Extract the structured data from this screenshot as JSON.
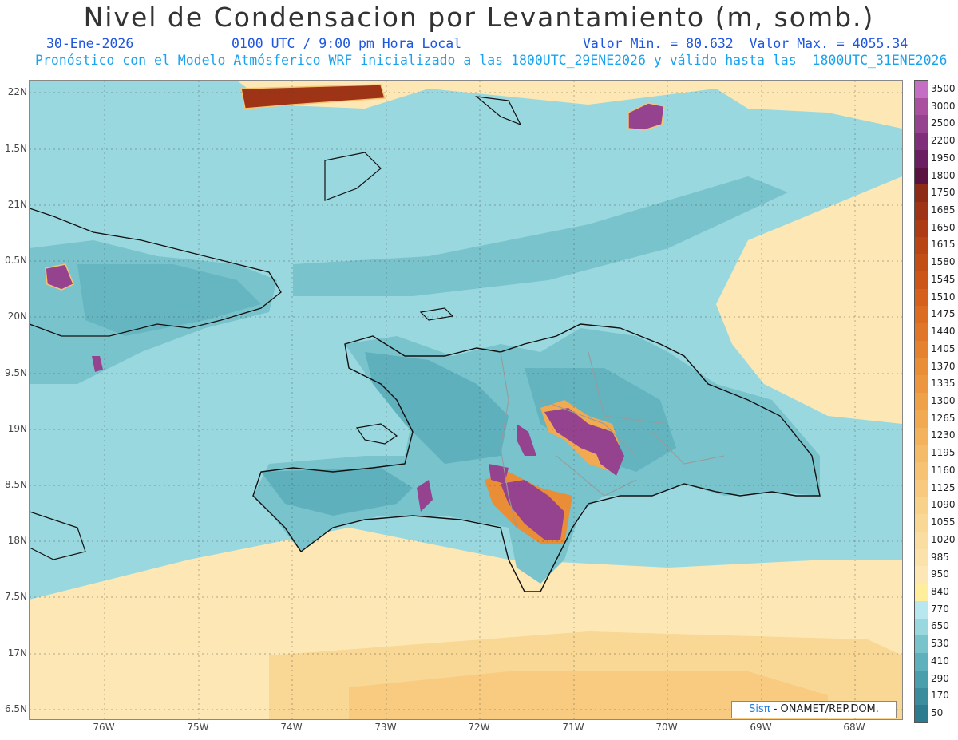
{
  "header": {
    "title": "Nivel de Condensacion por Levantamiento (m, somb.)",
    "date": "30-Ene-2026",
    "time": "0100 UTC / 9:00 pm Hora Local",
    "min_max": "Valor Min. = 80.632  Valor Max. = 4055.34",
    "model_line": "Pronóstico con el Modelo Atmósferico WRF inicializado a las 1800UTC_29ENE2026 y válido hasta las  1800UTC_31ENE2026"
  },
  "axes": {
    "lat_labels": [
      "22N",
      "1.5N",
      "21N",
      "0.5N",
      "20N",
      "9.5N",
      "19N",
      "8.5N",
      "18N",
      "7.5N",
      "17N",
      "6.5N"
    ],
    "lon_labels": [
      "76W",
      "75W",
      "74W",
      "73W",
      "72W",
      "71W",
      "70W",
      "69W",
      "68W"
    ]
  },
  "legend": {
    "labels": [
      "3500",
      "3000",
      "2500",
      "2200",
      "1950",
      "1800",
      "1750",
      "1685",
      "1650",
      "1615",
      "1580",
      "1545",
      "1510",
      "1475",
      "1440",
      "1405",
      "1370",
      "1335",
      "1300",
      "1265",
      "1230",
      "1195",
      "1160",
      "1125",
      "1090",
      "1055",
      "1020",
      "985",
      "950",
      "840",
      "770",
      "650",
      "530",
      "410",
      "290",
      "170",
      "50"
    ],
    "colors": [
      "#c46fc4",
      "#a9519f",
      "#95438e",
      "#7f2e79",
      "#6a1f63",
      "#5a1240",
      "#8e2b16",
      "#9e3315",
      "#ad3c14",
      "#b94414",
      "#c24d15",
      "#cc5618",
      "#d6611d",
      "#dc6c22",
      "#e07628",
      "#e5822f",
      "#e98d36",
      "#ec973f",
      "#efa147",
      "#f1aa52",
      "#f3b35d",
      "#f4bb69",
      "#f6c374",
      "#f7ca7f",
      "#f8d18a",
      "#f9d795",
      "#fadda0",
      "#fbe2aa",
      "#fde8b5",
      "#ffef9c",
      "#b8e7ef",
      "#9ad8df",
      "#79c3cc",
      "#5eb0bc",
      "#4b9eac",
      "#3b8c9d",
      "#2d7b8e"
    ]
  },
  "credit": {
    "sis": "Sisπ",
    "org": " - ONAMET/REP.DOM."
  }
}
